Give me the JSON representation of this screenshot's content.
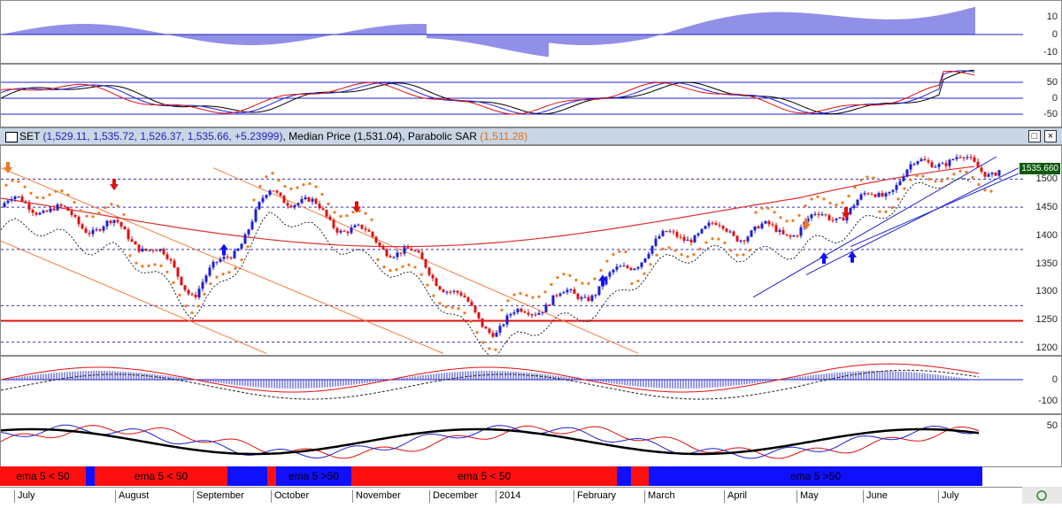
{
  "header": {
    "symbol": "SET",
    "ohlc": "(1,529.11, 1,535.72, 1,526.37, 1,535.66, +5.23999)",
    "median_label": ", Median Price",
    "median_value": "(1,531.04)",
    "sar_label": ", Parabolic SAR",
    "sar_value": "(1,511.28)",
    "restore_glyph": "□",
    "close_glyph": "×"
  },
  "last_price_tag": "1535.660",
  "axes": {
    "macd_hist": [
      "10",
      "0",
      "-10"
    ],
    "stoch": [
      "50",
      "0",
      "-50"
    ],
    "price": [
      "1500",
      "1450",
      "1400",
      "1350",
      "1300",
      "1250",
      "1200"
    ],
    "osc": [
      "0",
      "-100"
    ],
    "rsi": [
      "50"
    ]
  },
  "months": [
    "July",
    "August",
    "September",
    "October",
    "November",
    "December",
    "2014",
    "February",
    "March",
    "April",
    "May",
    "June",
    "July"
  ],
  "signal_bands": [
    {
      "label": "ema 5 < 50",
      "color": "#ff1010"
    },
    {
      "label": "",
      "color": "#1010ff"
    },
    {
      "label": "ema 5 < 50",
      "color": "#ff1010"
    },
    {
      "label": "",
      "color": "#1010ff"
    },
    {
      "label": "",
      "color": "#ff1010"
    },
    {
      "label": "ema 5 >50",
      "color": "#1010ff"
    },
    {
      "label": "ema 5 < 50",
      "color": "#ff1010"
    },
    {
      "label": "",
      "color": "#1010ff"
    },
    {
      "label": "",
      "color": "#ff1010"
    },
    {
      "label": "ema 5 >50",
      "color": "#1010ff"
    }
  ],
  "colors": {
    "up": "#1f1fd0",
    "down": "#e01010",
    "sar": "#f07820",
    "ma_long": "#e03030"
  },
  "chart_data": {
    "type": "line",
    "title": "SET",
    "ylim": [
      1200,
      1540
    ],
    "x": [
      "July",
      "August",
      "September",
      "October",
      "November",
      "December",
      "2014",
      "February",
      "March",
      "April",
      "May",
      "June",
      "July"
    ],
    "series": [
      {
        "name": "Median Price",
        "values": [
          1450,
          1420,
          1300,
          1470,
          1420,
          1330,
          1240,
          1290,
          1370,
          1420,
          1400,
          1470,
          1530
        ]
      }
    ]
  }
}
